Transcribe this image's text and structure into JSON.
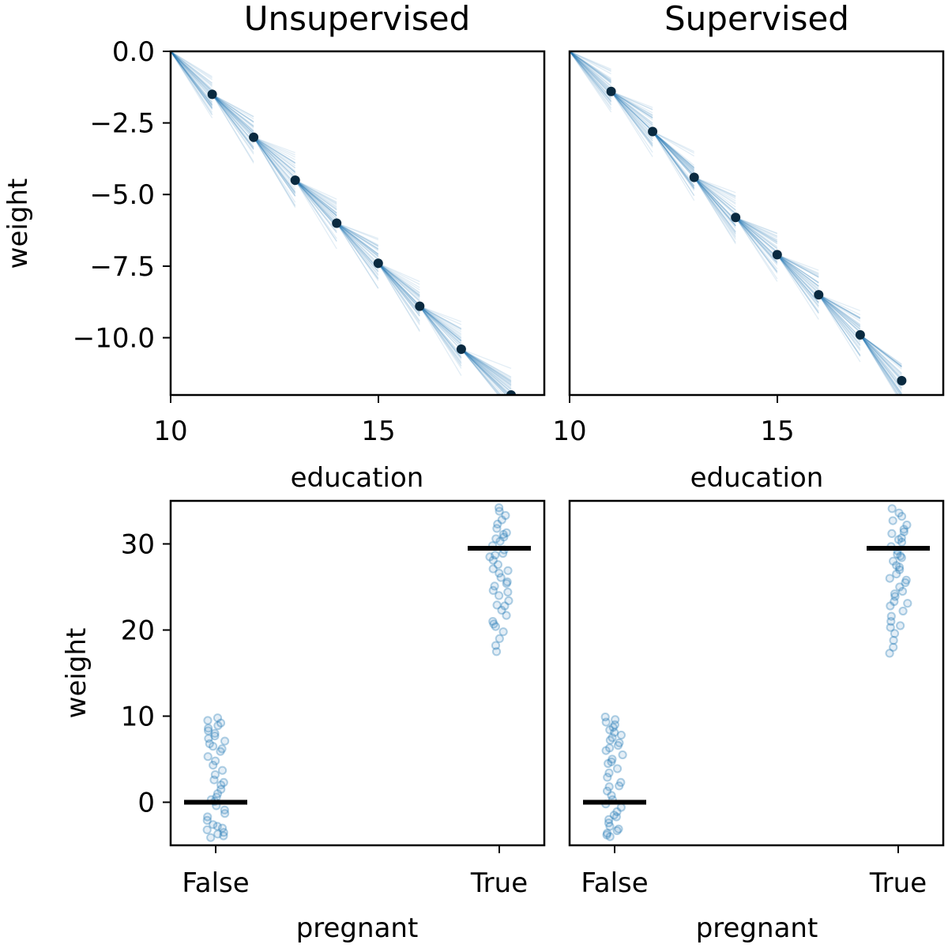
{
  "chart_data": [
    {
      "type": "line",
      "panel": "top-left",
      "title": "Unsupervised",
      "xlabel": "education",
      "ylabel": "weight",
      "xlim": [
        10,
        19
      ],
      "ylim": [
        -12,
        0
      ],
      "xticks": [
        10,
        15
      ],
      "xtick_labels": [
        "10",
        "15"
      ],
      "yticks": [
        0,
        -2.5,
        -5,
        -7.5,
        -10
      ],
      "ytick_labels": [
        "0.0",
        "−2.5",
        "−5.0",
        "−7.5",
        "−10.0"
      ],
      "points_x": [
        11,
        12,
        13,
        14,
        15,
        16,
        17,
        18.2
      ],
      "points_y": [
        -1.5,
        -3.0,
        -4.5,
        -6.0,
        -7.4,
        -8.9,
        -10.4,
        -12.0
      ],
      "sample_lines": 40,
      "line_color": "#1f77b4",
      "point_color": "#0a2a40"
    },
    {
      "type": "line",
      "panel": "top-right",
      "title": "Supervised",
      "xlabel": "education",
      "ylabel": "",
      "xlim": [
        10,
        19
      ],
      "ylim": [
        -12,
        0
      ],
      "xticks": [
        10,
        15
      ],
      "xtick_labels": [
        "10",
        "15"
      ],
      "points_x": [
        11,
        12,
        13,
        14,
        15,
        16,
        17,
        18
      ],
      "points_y": [
        -1.4,
        -2.8,
        -4.4,
        -5.8,
        -7.1,
        -8.5,
        -9.9,
        -11.5
      ],
      "sample_lines": 40,
      "line_color": "#1f77b4",
      "point_color": "#0a2a40"
    },
    {
      "type": "scatter",
      "panel": "bottom-left",
      "title": "",
      "xlabel": "pregnant",
      "ylabel": "weight",
      "categories": [
        "False",
        "True"
      ],
      "ylim": [
        -5,
        35
      ],
      "yticks": [
        0,
        10,
        20,
        30
      ],
      "ytick_labels": [
        "0",
        "10",
        "20",
        "30"
      ],
      "means": [
        0,
        29.5
      ],
      "false_values": [
        -4.1,
        -3.9,
        -3.7,
        -3.5,
        -3.2,
        -3.0,
        -2.6,
        -2.1,
        -1.7,
        -1.3,
        -0.9,
        -0.4,
        0.1,
        0.6,
        1.0,
        1.5,
        2.0,
        2.6,
        3.2,
        3.7,
        4.3,
        4.8,
        5.3,
        5.9,
        6.2,
        6.5,
        6.8,
        7.1,
        7.4,
        7.7,
        8.0,
        8.3,
        8.6,
        8.9,
        9.2,
        9.5,
        9.8,
        2.3,
        0.3,
        -2.8
      ],
      "true_values": [
        17.5,
        18.2,
        19.0,
        19.8,
        20.4,
        21.0,
        21.7,
        22.3,
        22.9,
        23.4,
        24.0,
        24.6,
        25.1,
        25.6,
        26.1,
        26.6,
        27.1,
        27.6,
        28.1,
        28.5,
        28.9,
        29.3,
        29.8,
        30.3,
        30.8,
        31.3,
        31.8,
        32.3,
        32.8,
        33.3,
        33.8,
        34.2,
        22.8,
        26.9,
        30.6,
        25.4,
        20.7,
        28.7,
        24.4,
        31.1
      ],
      "point_color": "#1f77b4",
      "mean_color": "#000000"
    },
    {
      "type": "scatter",
      "panel": "bottom-right",
      "title": "",
      "xlabel": "pregnant",
      "ylabel": "",
      "categories": [
        "False",
        "True"
      ],
      "ylim": [
        -5,
        35
      ],
      "means": [
        0,
        29.5
      ],
      "false_values": [
        -4.0,
        -3.8,
        -3.6,
        -3.3,
        -3.1,
        -2.8,
        -2.4,
        -2.0,
        -1.5,
        -1.1,
        -0.6,
        -0.2,
        0.3,
        0.8,
        1.3,
        1.8,
        2.3,
        2.9,
        3.4,
        3.9,
        4.5,
        5.0,
        5.5,
        6.0,
        6.3,
        6.6,
        6.9,
        7.2,
        7.5,
        7.8,
        8.1,
        8.4,
        8.7,
        9.0,
        9.3,
        9.6,
        9.9,
        1.9,
        -1.7,
        4.7
      ],
      "true_values": [
        17.3,
        18.0,
        18.8,
        19.6,
        20.3,
        21.0,
        21.6,
        22.2,
        22.8,
        23.3,
        23.9,
        24.5,
        25.0,
        25.5,
        26.0,
        26.5,
        27.0,
        27.5,
        28.0,
        28.4,
        28.8,
        29.2,
        29.7,
        30.2,
        30.7,
        31.2,
        31.7,
        32.2,
        32.7,
        33.2,
        33.6,
        34.1,
        23.1,
        27.3,
        30.5,
        25.8,
        20.5,
        28.6,
        24.2,
        31.4
      ],
      "point_color": "#1f77b4",
      "mean_color": "#000000"
    }
  ]
}
